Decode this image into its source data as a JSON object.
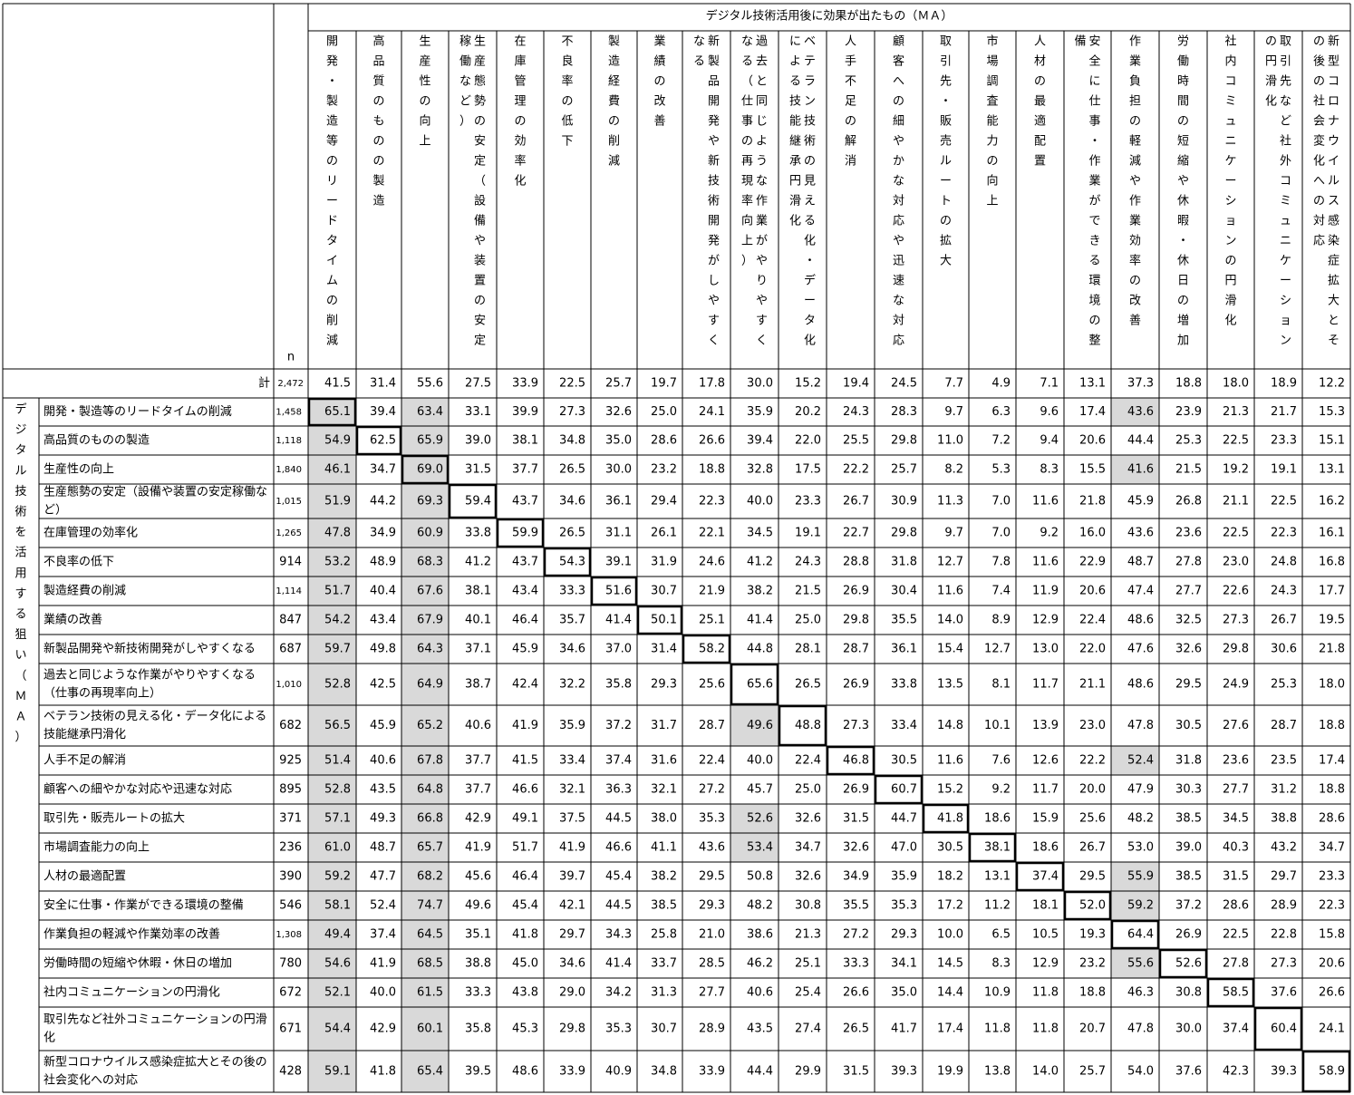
{
  "header": {
    "group_title": "デジタル技術活用後に効果が出たもの（ＭＡ）",
    "n_label": "n",
    "total_label": "計",
    "total_n": "2,472"
  },
  "side_label": "デジタル技術を活用する狙い（ＭＡ）",
  "columns": [
    {
      "lines": [
        "開発・製造等のリードタイムの削減"
      ]
    },
    {
      "lines": [
        "高品質のものの製造"
      ]
    },
    {
      "lines": [
        "生産性の向上"
      ]
    },
    {
      "lines": [
        "生産態勢の安定（設備や装置の安定",
        "稼働など）"
      ]
    },
    {
      "lines": [
        "在庫管理の効率化"
      ]
    },
    {
      "lines": [
        "不良率の低下"
      ]
    },
    {
      "lines": [
        "製造経費の削減"
      ]
    },
    {
      "lines": [
        "業績の改善"
      ]
    },
    {
      "lines": [
        "新製品開発や新技術開発がしやすく",
        "なる"
      ]
    },
    {
      "lines": [
        "過去と同じような作業がやりやすく",
        "なる（仕事の再現率向上）"
      ]
    },
    {
      "lines": [
        "ベテラン技術の見える化・データ化",
        "による技能継承円滑化"
      ]
    },
    {
      "lines": [
        "人手不足の解消"
      ]
    },
    {
      "lines": [
        "顧客への細やかな対応や迅速な対応"
      ]
    },
    {
      "lines": [
        "取引先・販売ルートの拡大"
      ]
    },
    {
      "lines": [
        "市場調査能力の向上"
      ]
    },
    {
      "lines": [
        "人材の最適配置"
      ]
    },
    {
      "lines": [
        "安全に仕事・作業ができる環境の整",
        "備"
      ]
    },
    {
      "lines": [
        "作業負担の軽減や作業効率の改善"
      ]
    },
    {
      "lines": [
        "労働時間の短縮や休暇・休日の増加"
      ]
    },
    {
      "lines": [
        "社内コミュニケーションの円滑化"
      ]
    },
    {
      "lines": [
        "取引先など社外コミュニケーション",
        "の円滑化"
      ]
    },
    {
      "lines": [
        "新型コロナウイルス感染症拡大とそ",
        "の後の社会変化への対応"
      ]
    }
  ],
  "total_values": [
    "41.5",
    "31.4",
    "55.6",
    "27.5",
    "33.9",
    "22.5",
    "25.7",
    "19.7",
    "17.8",
    "30.0",
    "15.2",
    "19.4",
    "24.5",
    "7.7",
    "4.9",
    "7.1",
    "13.1",
    "37.3",
    "18.8",
    "18.0",
    "18.9",
    "12.2"
  ],
  "rows": [
    {
      "label": [
        "開発・製造等のリードタイムの削減"
      ],
      "n": "1,458",
      "values": [
        "65.1",
        "39.4",
        "63.4",
        "33.1",
        "39.9",
        "27.3",
        "32.6",
        "25.0",
        "24.1",
        "35.9",
        "20.2",
        "24.3",
        "28.3",
        "9.7",
        "6.3",
        "9.6",
        "17.4",
        "43.6",
        "23.9",
        "21.3",
        "21.7",
        "15.3"
      ],
      "shaded": [
        0,
        2,
        17
      ],
      "boxed": 0
    },
    {
      "label": [
        "高品質のものの製造"
      ],
      "n": "1,118",
      "values": [
        "54.9",
        "62.5",
        "65.9",
        "39.0",
        "38.1",
        "34.8",
        "35.0",
        "28.6",
        "26.6",
        "39.4",
        "22.0",
        "25.5",
        "29.8",
        "11.0",
        "7.2",
        "9.4",
        "20.6",
        "44.4",
        "25.3",
        "22.5",
        "23.3",
        "15.1"
      ],
      "shaded": [
        0,
        2
      ],
      "boxed": 1
    },
    {
      "label": [
        "生産性の向上"
      ],
      "n": "1,840",
      "values": [
        "46.1",
        "34.7",
        "69.0",
        "31.5",
        "37.7",
        "26.5",
        "30.0",
        "23.2",
        "18.8",
        "32.8",
        "17.5",
        "22.2",
        "25.7",
        "8.2",
        "5.3",
        "8.3",
        "15.5",
        "41.6",
        "21.5",
        "19.2",
        "19.1",
        "13.1"
      ],
      "shaded": [
        0,
        2,
        17
      ],
      "boxed": 2
    },
    {
      "label": [
        "生産態勢の安定（設備や装置の安定稼働な",
        "ど）"
      ],
      "n": "1,015",
      "values": [
        "51.9",
        "44.2",
        "69.3",
        "59.4",
        "43.7",
        "34.6",
        "36.1",
        "29.4",
        "22.3",
        "40.0",
        "23.3",
        "26.7",
        "30.9",
        "11.3",
        "7.0",
        "11.6",
        "21.8",
        "45.9",
        "26.8",
        "21.1",
        "22.5",
        "16.2"
      ],
      "shaded": [
        0,
        2
      ],
      "boxed": 3
    },
    {
      "label": [
        "在庫管理の効率化"
      ],
      "n": "1,265",
      "values": [
        "47.8",
        "34.9",
        "60.9",
        "33.8",
        "59.9",
        "26.5",
        "31.1",
        "26.1",
        "22.1",
        "34.5",
        "19.1",
        "22.7",
        "29.8",
        "9.7",
        "7.0",
        "9.2",
        "16.0",
        "43.6",
        "23.6",
        "22.5",
        "22.3",
        "16.1"
      ],
      "shaded": [
        0,
        2
      ],
      "boxed": 4
    },
    {
      "label": [
        "不良率の低下"
      ],
      "n": "914",
      "values": [
        "53.2",
        "48.9",
        "68.3",
        "41.2",
        "43.7",
        "54.3",
        "39.1",
        "31.9",
        "24.6",
        "41.2",
        "24.3",
        "28.8",
        "31.8",
        "12.7",
        "7.8",
        "11.6",
        "22.9",
        "48.7",
        "27.8",
        "23.0",
        "24.8",
        "16.8"
      ],
      "shaded": [
        0,
        2
      ],
      "boxed": 5
    },
    {
      "label": [
        "製造経費の削減"
      ],
      "n": "1,114",
      "values": [
        "51.7",
        "40.4",
        "67.6",
        "38.1",
        "43.4",
        "33.3",
        "51.6",
        "30.7",
        "21.9",
        "38.2",
        "21.5",
        "26.9",
        "30.4",
        "11.6",
        "7.4",
        "11.9",
        "20.6",
        "47.4",
        "27.7",
        "22.6",
        "24.3",
        "17.7"
      ],
      "shaded": [
        0,
        2
      ],
      "boxed": 6
    },
    {
      "label": [
        "業績の改善"
      ],
      "n": "847",
      "values": [
        "54.2",
        "43.4",
        "67.9",
        "40.1",
        "46.4",
        "35.7",
        "41.4",
        "50.1",
        "25.1",
        "41.4",
        "25.0",
        "29.8",
        "35.5",
        "14.0",
        "8.9",
        "12.9",
        "22.4",
        "48.6",
        "32.5",
        "27.3",
        "26.7",
        "19.5"
      ],
      "shaded": [
        0,
        2
      ],
      "boxed": 7
    },
    {
      "label": [
        "新製品開発や新技術開発がしやすくなる"
      ],
      "n": "687",
      "values": [
        "59.7",
        "49.8",
        "64.3",
        "37.1",
        "45.9",
        "34.6",
        "37.0",
        "31.4",
        "58.2",
        "44.8",
        "28.1",
        "28.7",
        "36.1",
        "15.4",
        "12.7",
        "13.0",
        "22.0",
        "47.6",
        "32.6",
        "29.8",
        "30.6",
        "21.8"
      ],
      "shaded": [
        0,
        2
      ],
      "boxed": 8
    },
    {
      "label": [
        "過去と同じような作業がやりやすくなる",
        "（仕事の再現率向上）"
      ],
      "n": "1,010",
      "values": [
        "52.8",
        "42.5",
        "64.9",
        "38.7",
        "42.4",
        "32.2",
        "35.8",
        "29.3",
        "25.6",
        "65.6",
        "26.5",
        "26.9",
        "33.8",
        "13.5",
        "8.1",
        "11.7",
        "21.1",
        "48.6",
        "29.5",
        "24.9",
        "25.3",
        "18.0"
      ],
      "shaded": [
        0,
        2
      ],
      "boxed": 9
    },
    {
      "label": [
        "ベテラン技術の見える化・データ化による",
        "技能継承円滑化"
      ],
      "n": "682",
      "values": [
        "56.5",
        "45.9",
        "65.2",
        "40.6",
        "41.9",
        "35.9",
        "37.2",
        "31.7",
        "28.7",
        "49.6",
        "48.8",
        "27.3",
        "33.4",
        "14.8",
        "10.1",
        "13.9",
        "23.0",
        "47.8",
        "30.5",
        "27.6",
        "28.7",
        "18.8"
      ],
      "shaded": [
        0,
        2,
        9
      ],
      "boxed": 10
    },
    {
      "label": [
        "人手不足の解消"
      ],
      "n": "925",
      "values": [
        "51.4",
        "40.6",
        "67.8",
        "37.7",
        "41.5",
        "33.4",
        "37.4",
        "31.6",
        "22.4",
        "40.0",
        "22.4",
        "46.8",
        "30.5",
        "11.6",
        "7.6",
        "12.6",
        "22.2",
        "52.4",
        "31.8",
        "23.6",
        "23.5",
        "17.4"
      ],
      "shaded": [
        0,
        2,
        17
      ],
      "boxed": 11
    },
    {
      "label": [
        "顧客への細やかな対応や迅速な対応"
      ],
      "n": "895",
      "values": [
        "52.8",
        "43.5",
        "64.8",
        "37.7",
        "46.6",
        "32.1",
        "36.3",
        "32.1",
        "27.2",
        "45.7",
        "25.0",
        "26.9",
        "60.7",
        "15.2",
        "9.2",
        "11.7",
        "20.0",
        "47.9",
        "30.3",
        "27.7",
        "31.2",
        "18.8"
      ],
      "shaded": [
        0,
        2
      ],
      "boxed": 12
    },
    {
      "label": [
        "取引先・販売ルートの拡大"
      ],
      "n": "371",
      "values": [
        "57.1",
        "49.3",
        "66.8",
        "42.9",
        "49.1",
        "37.5",
        "44.5",
        "38.0",
        "35.3",
        "52.6",
        "32.6",
        "31.5",
        "44.7",
        "41.8",
        "18.6",
        "15.9",
        "25.6",
        "48.2",
        "38.5",
        "34.5",
        "38.8",
        "28.6"
      ],
      "shaded": [
        0,
        2,
        9
      ],
      "boxed": 13
    },
    {
      "label": [
        "市場調査能力の向上"
      ],
      "n": "236",
      "values": [
        "61.0",
        "48.7",
        "65.7",
        "41.9",
        "51.7",
        "41.9",
        "46.6",
        "41.1",
        "43.6",
        "53.4",
        "34.7",
        "32.6",
        "47.0",
        "30.5",
        "38.1",
        "18.6",
        "26.7",
        "53.0",
        "39.0",
        "40.3",
        "43.2",
        "34.7"
      ],
      "shaded": [
        0,
        2,
        9
      ],
      "boxed": 14
    },
    {
      "label": [
        "人材の最適配置"
      ],
      "n": "390",
      "values": [
        "59.2",
        "47.7",
        "68.2",
        "45.6",
        "46.4",
        "39.7",
        "45.4",
        "38.2",
        "29.5",
        "50.8",
        "32.6",
        "34.9",
        "35.9",
        "18.2",
        "13.1",
        "37.4",
        "29.5",
        "55.9",
        "38.5",
        "31.5",
        "29.7",
        "23.3"
      ],
      "shaded": [
        0,
        2,
        17
      ],
      "boxed": 15
    },
    {
      "label": [
        "安全に仕事・作業ができる環境の整備"
      ],
      "n": "546",
      "values": [
        "58.1",
        "52.4",
        "74.7",
        "49.6",
        "45.4",
        "42.1",
        "44.5",
        "38.5",
        "29.3",
        "48.2",
        "30.8",
        "35.5",
        "35.3",
        "17.2",
        "11.2",
        "18.1",
        "52.0",
        "59.2",
        "37.2",
        "28.6",
        "28.9",
        "22.3"
      ],
      "shaded": [
        0,
        2,
        17
      ],
      "boxed": 16
    },
    {
      "label": [
        "作業負担の軽減や作業効率の改善"
      ],
      "n": "1,308",
      "values": [
        "49.4",
        "37.4",
        "64.5",
        "35.1",
        "41.8",
        "29.7",
        "34.3",
        "25.8",
        "21.0",
        "38.6",
        "21.3",
        "27.2",
        "29.3",
        "10.0",
        "6.5",
        "10.5",
        "19.3",
        "64.4",
        "26.9",
        "22.5",
        "22.8",
        "15.8"
      ],
      "shaded": [
        0,
        2
      ],
      "boxed": 17
    },
    {
      "label": [
        "労働時間の短縮や休暇・休日の増加"
      ],
      "n": "780",
      "values": [
        "54.6",
        "41.9",
        "68.5",
        "38.8",
        "45.0",
        "34.6",
        "41.4",
        "33.7",
        "28.5",
        "46.2",
        "25.1",
        "33.3",
        "34.1",
        "14.5",
        "8.3",
        "12.9",
        "23.2",
        "55.6",
        "52.6",
        "27.8",
        "27.3",
        "20.6"
      ],
      "shaded": [
        0,
        2,
        17
      ],
      "boxed": 18
    },
    {
      "label": [
        "社内コミュニケーションの円滑化"
      ],
      "n": "672",
      "values": [
        "52.1",
        "40.0",
        "61.5",
        "33.3",
        "43.8",
        "29.0",
        "34.2",
        "31.3",
        "27.7",
        "40.6",
        "25.4",
        "26.6",
        "35.0",
        "14.4",
        "10.9",
        "11.8",
        "18.8",
        "46.3",
        "30.8",
        "58.5",
        "37.6",
        "26.6"
      ],
      "shaded": [
        0,
        2
      ],
      "boxed": 19
    },
    {
      "label": [
        "取引先など社外コミュニケーションの円滑",
        "化"
      ],
      "n": "671",
      "values": [
        "54.4",
        "42.9",
        "60.1",
        "35.8",
        "45.3",
        "29.8",
        "35.3",
        "30.7",
        "28.9",
        "43.5",
        "27.4",
        "26.5",
        "41.7",
        "17.4",
        "11.8",
        "11.8",
        "20.7",
        "47.8",
        "30.0",
        "37.4",
        "60.4",
        "24.1"
      ],
      "shaded": [
        0,
        2
      ],
      "boxed": 20
    },
    {
      "label": [
        "新型コロナウイルス感染症拡大とその後の",
        "社会変化への対応"
      ],
      "n": "428",
      "values": [
        "59.1",
        "41.8",
        "65.4",
        "39.5",
        "48.6",
        "33.9",
        "40.9",
        "34.8",
        "33.9",
        "44.4",
        "29.9",
        "31.5",
        "39.3",
        "19.9",
        "13.8",
        "14.0",
        "25.7",
        "54.0",
        "37.6",
        "42.3",
        "39.3",
        "58.9"
      ],
      "shaded": [
        0,
        2
      ],
      "boxed": 21
    }
  ]
}
